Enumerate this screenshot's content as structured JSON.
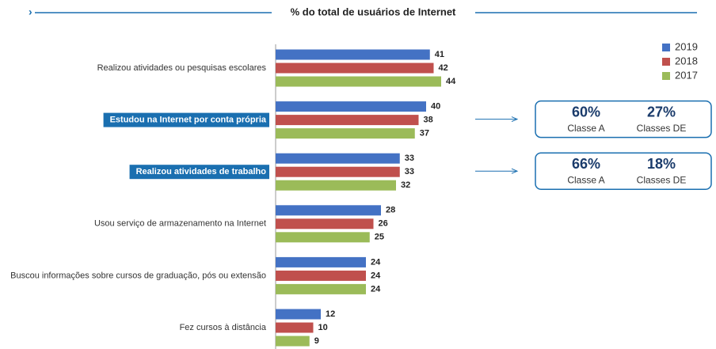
{
  "chart_data": {
    "type": "bar",
    "orientation": "horizontal",
    "title": "% do total de usuários de Internet",
    "categories": [
      "Realizou atividades ou pesquisas escolares",
      "Estudou na Internet por conta própria",
      "Realizou atividades de trabalho",
      "Usou serviço de armazenamento na Internet",
      "Buscou informações sobre cursos de graduação, pós ou extensão",
      "Fez cursos à distância"
    ],
    "series": [
      {
        "name": "2019",
        "color": "#4472c4",
        "values": [
          41,
          40,
          33,
          28,
          24,
          12
        ]
      },
      {
        "name": "2018",
        "color": "#c0504d",
        "values": [
          42,
          38,
          33,
          26,
          24,
          10
        ]
      },
      {
        "name": "2017",
        "color": "#9bbb59",
        "values": [
          44,
          37,
          32,
          25,
          24,
          9
        ]
      }
    ],
    "legend": "top-right",
    "callouts": [
      [
        {
          "value": "60%",
          "label": "Classe A"
        },
        {
          "value": "27%",
          "label": "Classes DE"
        }
      ],
      [
        {
          "value": "66%",
          "label": "Classe A"
        },
        {
          "value": "18%",
          "label": "Classes DE"
        }
      ]
    ]
  }
}
